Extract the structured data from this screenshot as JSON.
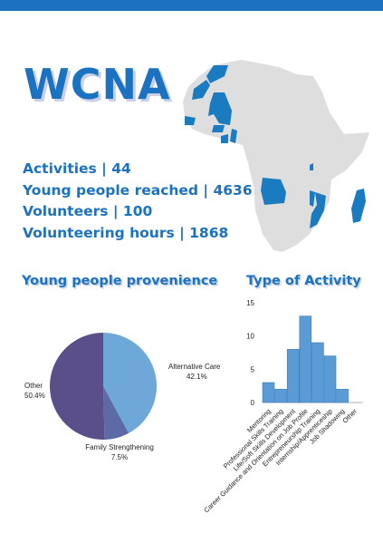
{
  "header": {
    "title": "WCNA"
  },
  "stats": [
    {
      "text": "Activities  | 44"
    },
    {
      "text": "Young people reached |  4636"
    },
    {
      "text": "Volunteers | 100"
    },
    {
      "text": "Volunteering hours |  1868"
    }
  ],
  "sections": {
    "provenience_title": "Young people provenience",
    "activity_title": "Type of Activity"
  },
  "colors": {
    "accent": "#1b72c0",
    "map_highlight": "#1a7bc0",
    "map_land": "#dedede",
    "pie": [
      "#6ea8d8",
      "#5d6aa6",
      "#5b4f8a"
    ],
    "bar": "#5b9bd5"
  },
  "chart_data": [
    {
      "type": "pie",
      "title": "Young people provenience",
      "slices": [
        {
          "label": "Alternative Care",
          "pct_label": "42.1%",
          "value": 42.1
        },
        {
          "label": "Family Strengthening",
          "pct_label": "7.5%",
          "value": 7.5
        },
        {
          "label": "Other",
          "pct_label": "50.4%",
          "value": 50.4
        }
      ]
    },
    {
      "type": "bar",
      "title": "Type of Activity",
      "categories": [
        "Mentoring",
        "Professional Skills Training",
        "Life/Soft Skills Development",
        "Career Guidance and Orientation on Job Profile",
        "Entrepreneurship Training",
        "Internship/Apprenticeship",
        "Job Shadowing",
        "Other"
      ],
      "values": [
        3,
        2,
        8,
        13,
        9,
        7,
        2,
        0
      ],
      "ylim": [
        0,
        15
      ],
      "yticks": [
        0,
        5,
        10,
        15
      ],
      "grid": false
    }
  ]
}
